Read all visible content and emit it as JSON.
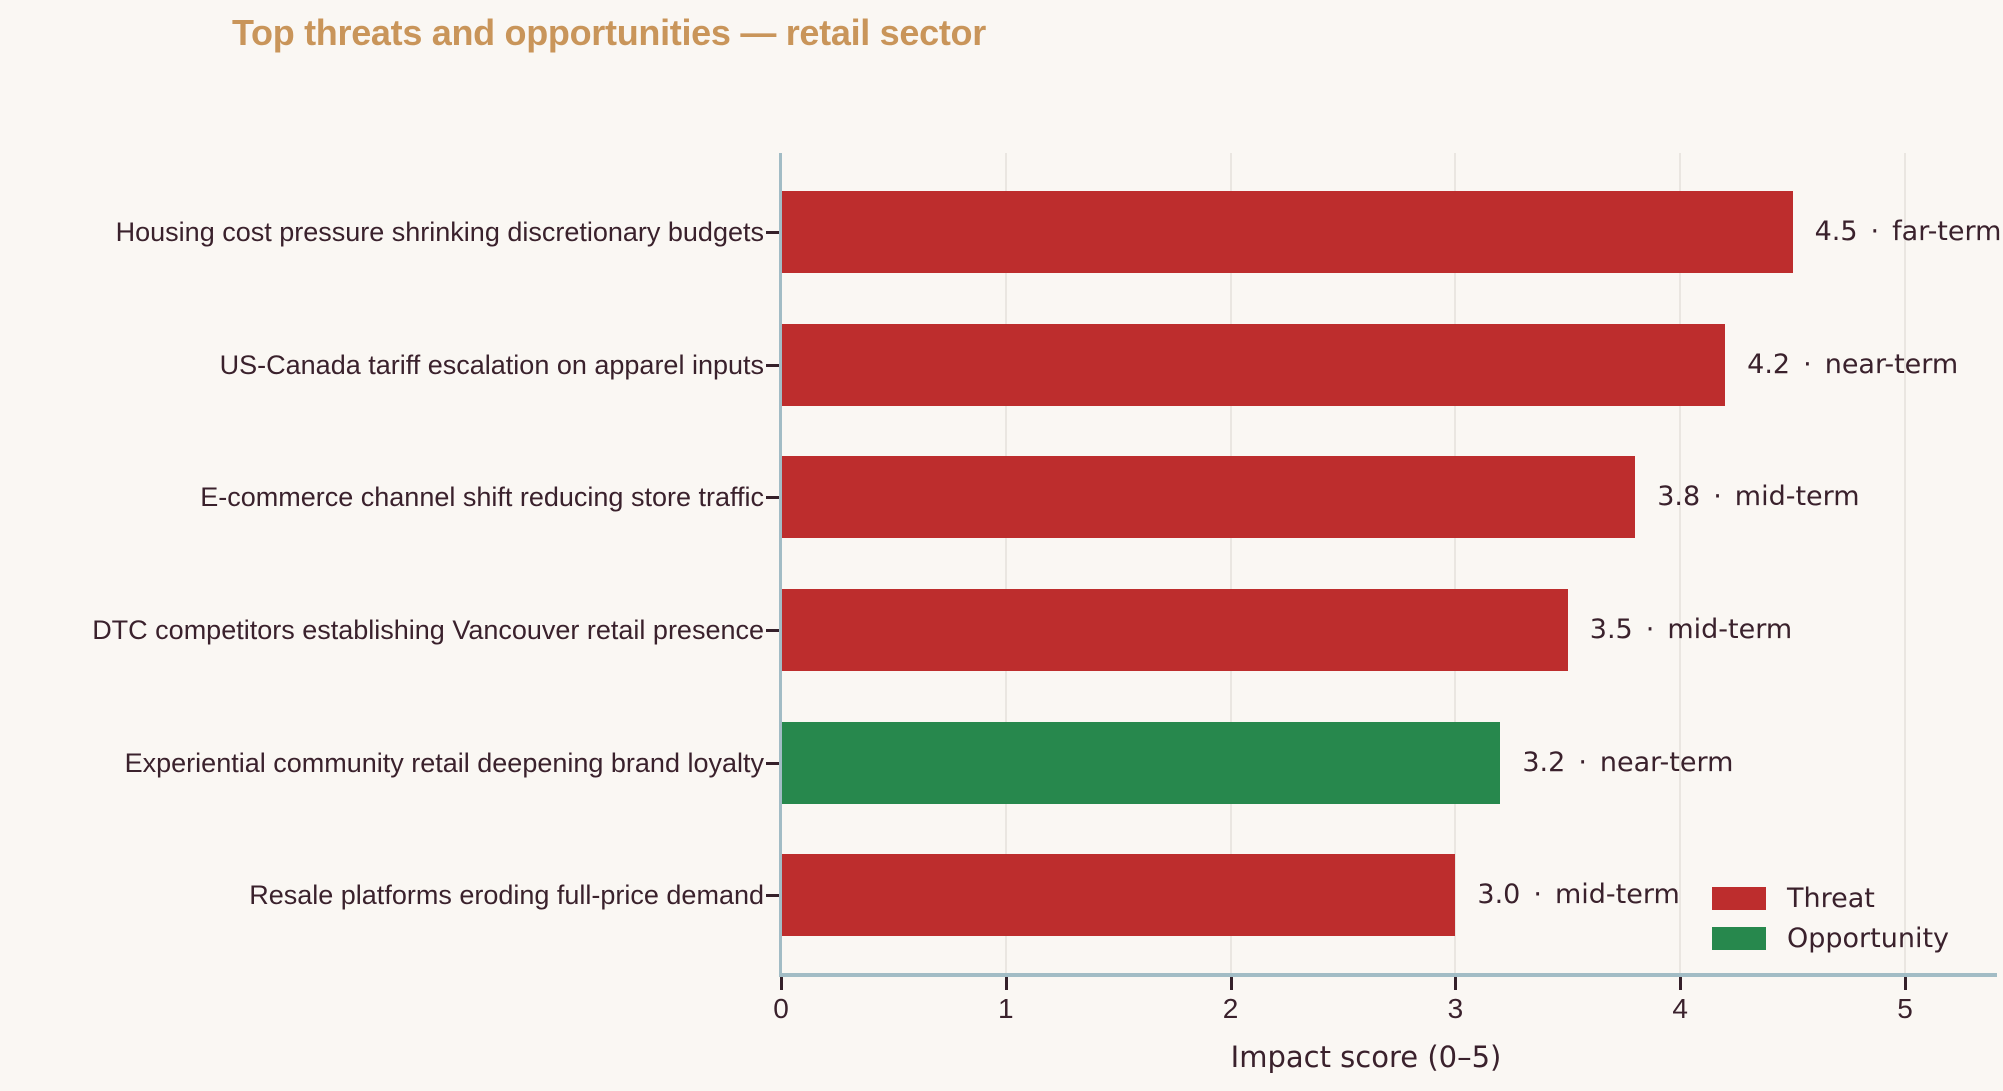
{
  "title": "Top threats and opportunities — retail sector",
  "xlabel": "Impact score (0–5)",
  "value_separator": "·",
  "colors": {
    "background": "#faf7f3",
    "title": "#c9955a",
    "text": "#3a212c",
    "axis": "#a2bcc5",
    "grid": "#eae6e1",
    "Threat": "#bd2d2d",
    "Opportunity": "#27884d"
  },
  "legend": {
    "position": "lower right",
    "items": [
      {
        "label": "Threat",
        "color": "#bd2d2d"
      },
      {
        "label": "Opportunity",
        "color": "#27884d"
      }
    ]
  },
  "chart_data": {
    "type": "bar",
    "orientation": "horizontal",
    "title": "Top threats and opportunities — retail sector",
    "xlabel": "Impact score (0–5)",
    "xlim": [
      0,
      5.4
    ],
    "x_ticks": [
      "0",
      "1",
      "2",
      "3",
      "4",
      "5"
    ],
    "grid": "vertical",
    "categories": [
      "Housing cost pressure shrinking discretionary budgets",
      "US-Canada tariff escalation on apparel inputs",
      "E-commerce channel shift reducing store traffic",
      "DTC competitors establishing Vancouver retail presence",
      "Experiential community retail deepening brand loyalty",
      "Resale platforms eroding full-price demand"
    ],
    "values": [
      4.5,
      4.2,
      3.8,
      3.5,
      3.2,
      3.0
    ],
    "value_labels": [
      "4.5",
      "4.2",
      "3.8",
      "3.5",
      "3.2",
      "3.0"
    ],
    "types": [
      "Threat",
      "Threat",
      "Threat",
      "Threat",
      "Opportunity",
      "Threat"
    ],
    "terms": [
      "far-term",
      "near-term",
      "mid-term",
      "mid-term",
      "near-term",
      "mid-term"
    ],
    "annotations": [
      "4.5 · far-term",
      "4.2 · near-term",
      "3.8 · mid-term",
      "3.5 · mid-term",
      "3.2 · near-term",
      "3.0 · mid-term"
    ]
  }
}
